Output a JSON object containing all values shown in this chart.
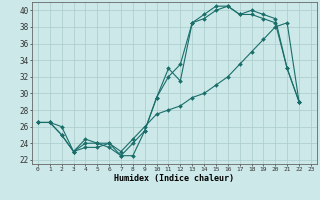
{
  "xlabel": "Humidex (Indice chaleur)",
  "xlim": [
    -0.5,
    23.5
  ],
  "ylim": [
    21.5,
    41.0
  ],
  "xticks": [
    0,
    1,
    2,
    3,
    4,
    5,
    6,
    7,
    8,
    9,
    10,
    11,
    12,
    13,
    14,
    15,
    16,
    17,
    18,
    19,
    20,
    21,
    22,
    23
  ],
  "yticks": [
    22,
    24,
    26,
    28,
    30,
    32,
    34,
    36,
    38,
    40
  ],
  "bg_color": "#cce8e8",
  "grid_color": "#aacccc",
  "line_color": "#1a6e6a",
  "line1_x": [
    0,
    1,
    2,
    3,
    4,
    5,
    6,
    7,
    8,
    9,
    10,
    11,
    12,
    13,
    14,
    15,
    16,
    17,
    18,
    19,
    20,
    21,
    22
  ],
  "line1_y": [
    26.5,
    26.5,
    25.0,
    23.0,
    24.5,
    24.0,
    24.0,
    22.5,
    22.5,
    25.5,
    29.5,
    33.0,
    31.5,
    38.5,
    39.0,
    40.0,
    40.5,
    39.5,
    39.5,
    39.0,
    38.5,
    33.0,
    29.0
  ],
  "line2_x": [
    0,
    1,
    2,
    3,
    4,
    5,
    6,
    7,
    8,
    9,
    10,
    11,
    12,
    13,
    14,
    15,
    16,
    17,
    18,
    19,
    20,
    21,
    22
  ],
  "line2_y": [
    26.5,
    26.5,
    25.0,
    23.0,
    24.0,
    24.0,
    23.5,
    22.5,
    24.0,
    25.5,
    29.5,
    32.0,
    33.5,
    38.5,
    39.5,
    40.5,
    40.5,
    39.5,
    40.0,
    39.5,
    39.0,
    33.0,
    29.0
  ],
  "line3_x": [
    0,
    1,
    2,
    3,
    4,
    5,
    6,
    7,
    8,
    9,
    10,
    11,
    12,
    13,
    14,
    15,
    16,
    17,
    18,
    19,
    20,
    21,
    22
  ],
  "line3_y": [
    26.5,
    26.5,
    26.0,
    23.0,
    23.5,
    23.5,
    24.0,
    23.0,
    24.5,
    26.0,
    27.5,
    28.0,
    28.5,
    29.5,
    30.0,
    31.0,
    32.0,
    33.5,
    35.0,
    36.5,
    38.0,
    38.5,
    29.0
  ]
}
